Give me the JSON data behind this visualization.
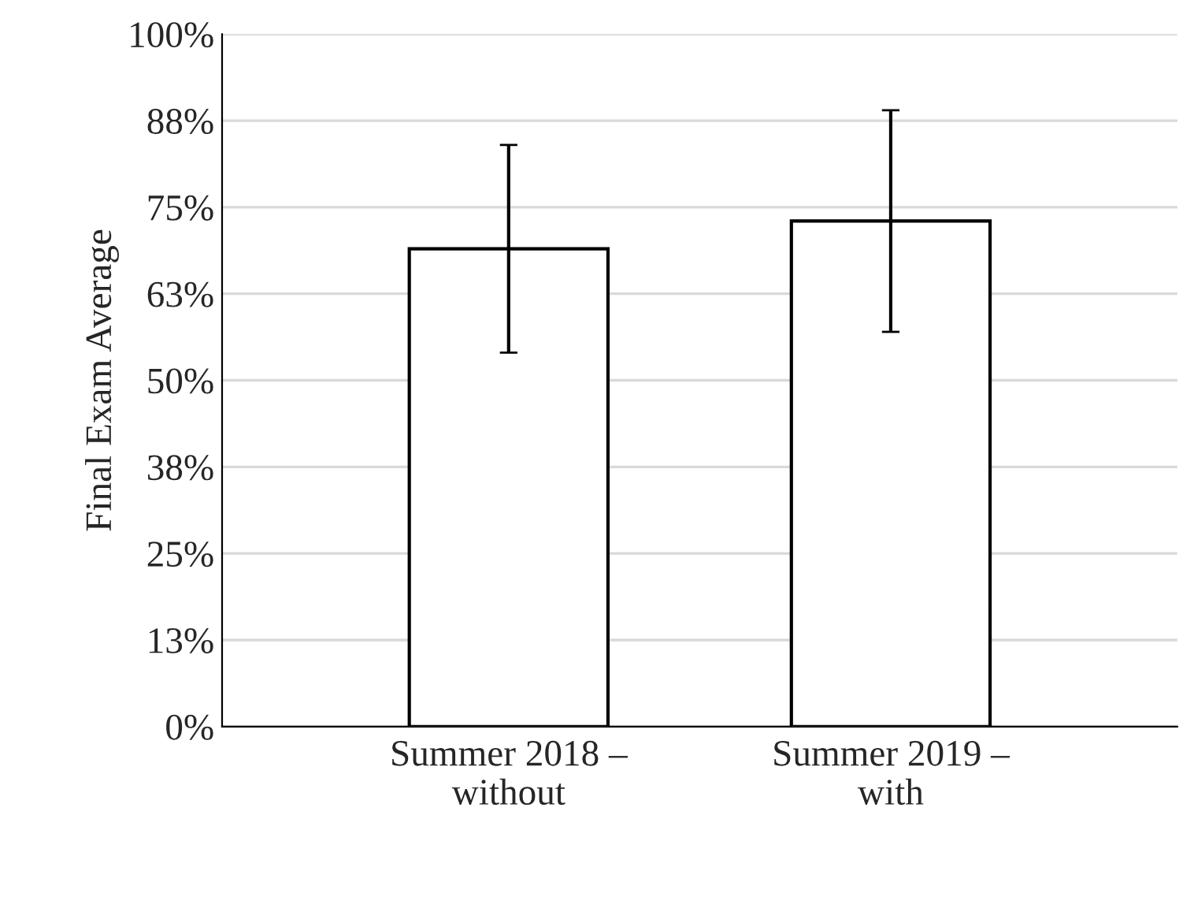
{
  "chart_data": {
    "type": "bar",
    "ylabel": "Final Exam Average",
    "categories": [
      "Summer 2018 –\nwithout",
      "Summer 2019 –\nwith"
    ],
    "values": [
      69,
      73
    ],
    "errors": [
      15,
      16
    ],
    "color": "#ffffff",
    "ylim": [
      0,
      100
    ],
    "yticks": [
      {
        "value": 0,
        "label": "0%"
      },
      {
        "value": 12.5,
        "label": "13%"
      },
      {
        "value": 25,
        "label": "25%"
      },
      {
        "value": 37.5,
        "label": "38%"
      },
      {
        "value": 50,
        "label": "50%"
      },
      {
        "value": 62.5,
        "label": "63%"
      },
      {
        "value": 75,
        "label": "75%"
      },
      {
        "value": 87.5,
        "label": "88%"
      },
      {
        "value": 100,
        "label": "100%"
      }
    ],
    "grid": "y"
  }
}
